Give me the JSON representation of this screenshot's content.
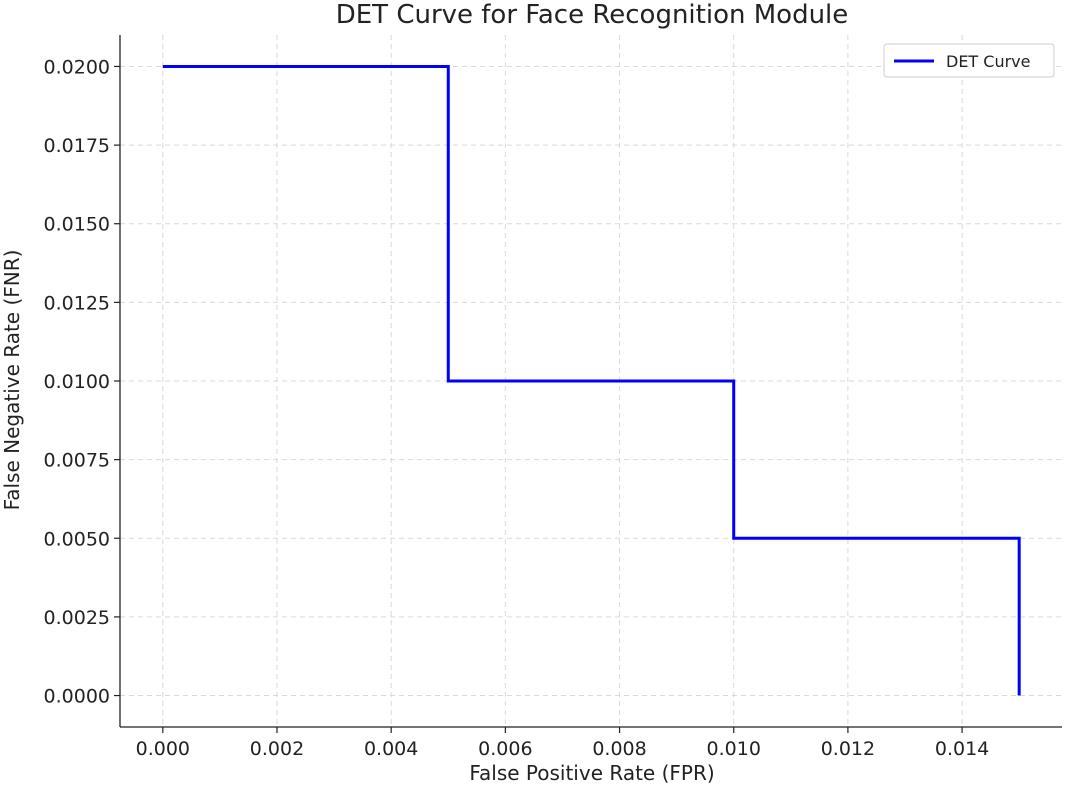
{
  "chart_data": {
    "type": "line",
    "title": "DET Curve for Face Recognition Module",
    "xlabel": "False Positive Rate (FPR)",
    "ylabel": "False Negative Rate (FNR)",
    "xlim": [
      -0.00075,
      0.01575
    ],
    "ylim": [
      -0.001,
      0.021
    ],
    "grid": true,
    "legend_position": "top-right",
    "x_ticks": [
      0.0,
      0.002,
      0.004,
      0.006,
      0.008,
      0.01,
      0.012,
      0.014
    ],
    "x_tick_labels": [
      "0.000",
      "0.002",
      "0.004",
      "0.006",
      "0.008",
      "0.010",
      "0.012",
      "0.014"
    ],
    "y_ticks": [
      0.0,
      0.0025,
      0.005,
      0.0075,
      0.01,
      0.0125,
      0.015,
      0.0175,
      0.02
    ],
    "y_tick_labels": [
      "0.0000",
      "0.0025",
      "0.0050",
      "0.0075",
      "0.0100",
      "0.0125",
      "0.0150",
      "0.0175",
      "0.0200"
    ],
    "series": [
      {
        "name": "DET Curve",
        "color": "#0000ff",
        "step": "post",
        "x": [
          0.0,
          0.005,
          0.01,
          0.015
        ],
        "y": [
          0.02,
          0.01,
          0.005,
          0.0
        ]
      }
    ]
  }
}
